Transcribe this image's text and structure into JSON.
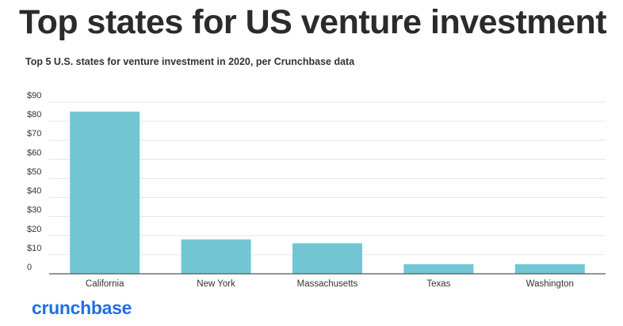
{
  "header": {
    "title": "Top states for US venture investment",
    "subtitle": "Top 5 U.S. states for venture investment in 2020, per Crunchbase data"
  },
  "footer": {
    "logo_text": "crunchbase"
  },
  "colors": {
    "bar": "#72c6d4",
    "grid": "#e6e6e6",
    "axis": "#555555",
    "logo": "#1f6fe3"
  },
  "chart_data": {
    "type": "bar",
    "title": "Top 5 U.S. states for venture investment in 2020, per Crunchbase data",
    "xlabel": "",
    "ylabel": "",
    "categories": [
      "California",
      "New York",
      "Massachusetts",
      "Texas",
      "Washington"
    ],
    "values": [
      85,
      18,
      16,
      5,
      5
    ],
    "ylim": [
      0,
      90
    ],
    "yticks": [
      0,
      10,
      20,
      30,
      40,
      50,
      60,
      70,
      80,
      90
    ],
    "ytick_labels": [
      "0",
      "$10",
      "$20",
      "$30",
      "$40",
      "$50",
      "$60",
      "$70",
      "$80",
      "$90"
    ],
    "grid": true,
    "legend": "none"
  }
}
